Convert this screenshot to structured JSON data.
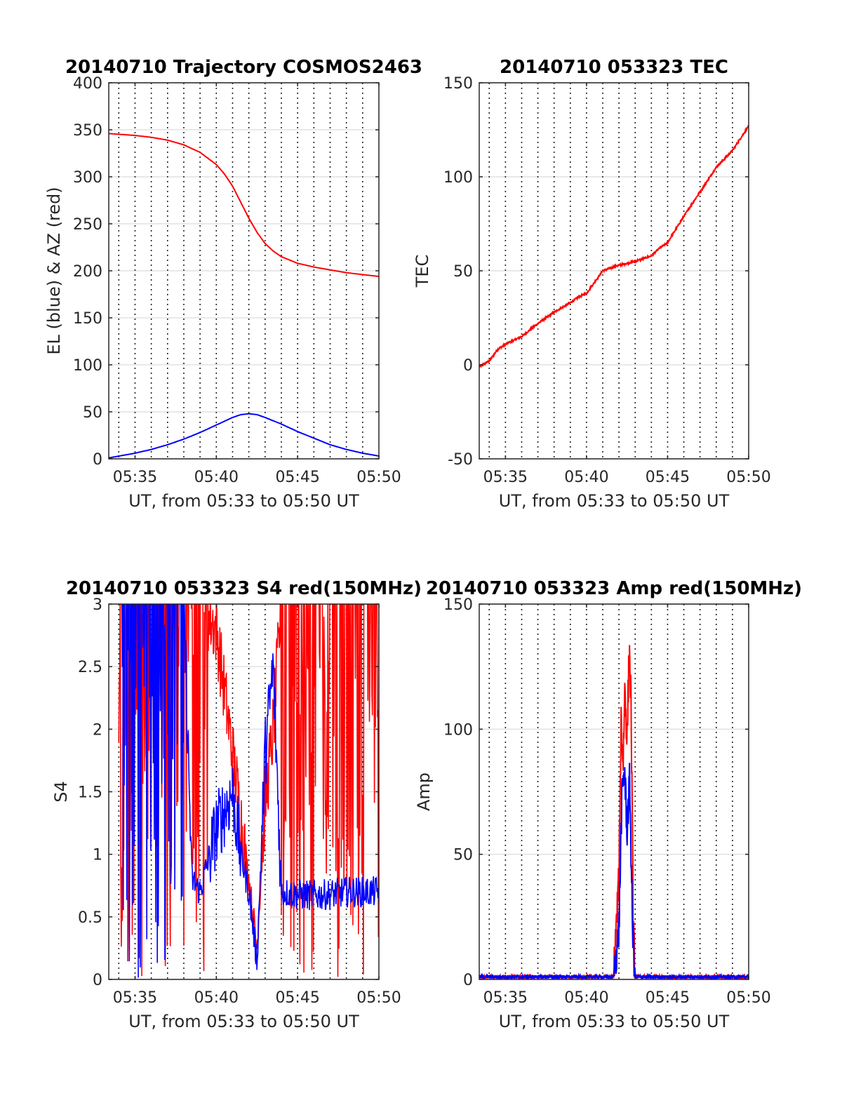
{
  "chart_data": [
    {
      "type": "line",
      "title": "20140710 Trajectory COSMOS2463",
      "xlabel": "UT, from 05:33 to 05:50 UT",
      "ylabel": "EL (blue) & AZ (red)",
      "xlim": [
        "05:33:23",
        "05:50:00"
      ],
      "ylim": [
        0,
        400
      ],
      "x_ticks": [
        "05:35",
        "05:40",
        "05:45",
        "05:50"
      ],
      "y_ticks": [
        "0",
        "50",
        "100",
        "150",
        "200",
        "250",
        "300",
        "350",
        "400"
      ],
      "series": [
        {
          "color": "#ff0000",
          "x": [
            "05:33:23",
            "05:35:00",
            "05:36:00",
            "05:37:00",
            "05:38:00",
            "05:39:00",
            "05:40:00",
            "05:40:30",
            "05:41:00",
            "05:41:30",
            "05:42:00",
            "05:42:30",
            "05:43:00",
            "05:43:30",
            "05:44:00",
            "05:45:00",
            "05:46:00",
            "05:47:00",
            "05:48:00",
            "05:49:00",
            "05:50:00"
          ],
          "values": [
            346,
            344,
            342,
            339,
            334,
            326,
            313,
            303,
            290,
            273,
            256,
            241,
            229,
            221,
            215,
            208,
            204,
            201,
            198,
            196,
            194
          ]
        },
        {
          "color": "#0000ff",
          "x": [
            "05:33:23",
            "05:35:00",
            "05:36:00",
            "05:37:00",
            "05:38:00",
            "05:39:00",
            "05:40:00",
            "05:41:00",
            "05:41:30",
            "05:42:00",
            "05:42:30",
            "05:43:00",
            "05:44:00",
            "05:45:00",
            "05:46:00",
            "05:47:00",
            "05:48:00",
            "05:49:00",
            "05:50:00"
          ],
          "values": [
            1,
            6,
            10,
            15,
            21,
            28,
            36,
            44,
            47,
            48,
            47,
            44,
            37,
            29,
            22,
            15,
            10,
            6,
            3
          ]
        }
      ]
    },
    {
      "type": "line",
      "title": "20140710 053323 TEC",
      "xlabel": "UT, from 05:33 to 05:50 UT",
      "ylabel": "TEC",
      "xlim": [
        "05:33:23",
        "05:50:00"
      ],
      "ylim": [
        -50,
        150
      ],
      "x_ticks": [
        "05:35",
        "05:40",
        "05:45",
        "05:50"
      ],
      "y_ticks": [
        "-50",
        "0",
        "50",
        "100",
        "150"
      ],
      "series": [
        {
          "color": "#ff0000",
          "x": [
            "05:33:23",
            "05:34:00",
            "05:34:30",
            "05:35:00",
            "05:36:00",
            "05:37:00",
            "05:38:00",
            "05:39:00",
            "05:39:30",
            "05:40:00",
            "05:40:30",
            "05:41:00",
            "05:42:00",
            "05:43:00",
            "05:44:00",
            "05:44:30",
            "05:45:00",
            "05:46:00",
            "05:47:00",
            "05:48:00",
            "05:49:00",
            "05:50:00"
          ],
          "values": [
            -1,
            2,
            8,
            11,
            15,
            22,
            28,
            33,
            36,
            38,
            44,
            50,
            53,
            55,
            58,
            62,
            65,
            79,
            92,
            105,
            114,
            127
          ]
        }
      ]
    },
    {
      "type": "line",
      "title": "20140710 053323 S4 red(150MHz)",
      "xlabel": "UT, from 05:33 to 05:50 UT",
      "ylabel": "S4",
      "xlim": [
        "05:33:23",
        "05:50:00"
      ],
      "ylim": [
        0,
        3
      ],
      "x_ticks": [
        "05:35",
        "05:40",
        "05:45",
        "05:50"
      ],
      "y_ticks": [
        "0",
        "0.5",
        "1",
        "1.5",
        "2",
        "2.5",
        "3"
      ],
      "series": [
        {
          "color": "#ff0000",
          "x": [
            "05:34:00",
            "05:35:00",
            "05:36:00",
            "05:37:00",
            "05:38:00",
            "05:39:00",
            "05:40:00",
            "05:41:00",
            "05:42:00",
            "05:42:30",
            "05:43:00",
            "05:43:30",
            "05:44:00",
            "05:45:00",
            "05:46:00",
            "05:47:00",
            "05:48:00",
            "05:49:00",
            "05:50:00"
          ],
          "values": [
            3,
            3,
            3,
            3,
            3,
            3,
            2.8,
            1.8,
            0.8,
            0.25,
            1.4,
            2.0,
            3,
            3,
            3,
            3,
            3,
            3,
            3
          ]
        },
        {
          "color": "#0000ff",
          "x": [
            "05:34:00",
            "05:35:00",
            "05:36:00",
            "05:37:00",
            "05:38:00",
            "05:38:30",
            "05:39:00",
            "05:40:00",
            "05:41:00",
            "05:41:30",
            "05:42:00",
            "05:42:30",
            "05:43:00",
            "05:43:30",
            "05:44:00",
            "05:45:00",
            "05:46:00",
            "05:47:00",
            "05:48:00",
            "05:49:00",
            "05:50:00"
          ],
          "values": [
            3,
            3,
            3,
            3,
            3,
            0.8,
            0.7,
            1.2,
            1.5,
            1.0,
            0.7,
            0.15,
            1.8,
            2.5,
            0.7,
            0.68,
            0.67,
            0.68,
            0.7,
            0.7,
            0.7
          ]
        }
      ]
    },
    {
      "type": "line",
      "title": "20140710 053323 Amp red(150MHz)",
      "xlabel": "UT, from 05:33 to 05:50 UT",
      "ylabel": "Amp",
      "xlim": [
        "05:33:23",
        "05:50:00"
      ],
      "ylim": [
        0,
        150
      ],
      "x_ticks": [
        "05:35",
        "05:40",
        "05:45",
        "05:50"
      ],
      "y_ticks": [
        "0",
        "50",
        "100",
        "150"
      ],
      "series": [
        {
          "color": "#ff0000",
          "x": [
            "05:33:23",
            "05:41:40",
            "05:42:00",
            "05:42:08",
            "05:42:15",
            "05:42:22",
            "05:42:30",
            "05:42:38",
            "05:42:45",
            "05:42:52",
            "05:43:00",
            "05:50:00"
          ],
          "values": [
            1,
            1,
            40,
            105,
            85,
            118,
            95,
            133,
            110,
            30,
            1,
            1
          ]
        },
        {
          "color": "#0000ff",
          "x": [
            "05:33:23",
            "05:41:40",
            "05:42:00",
            "05:42:10",
            "05:42:20",
            "05:42:30",
            "05:42:40",
            "05:42:50",
            "05:43:00",
            "05:50:00"
          ],
          "values": [
            1,
            1,
            20,
            70,
            85,
            60,
            80,
            20,
            1,
            1
          ]
        }
      ]
    }
  ]
}
